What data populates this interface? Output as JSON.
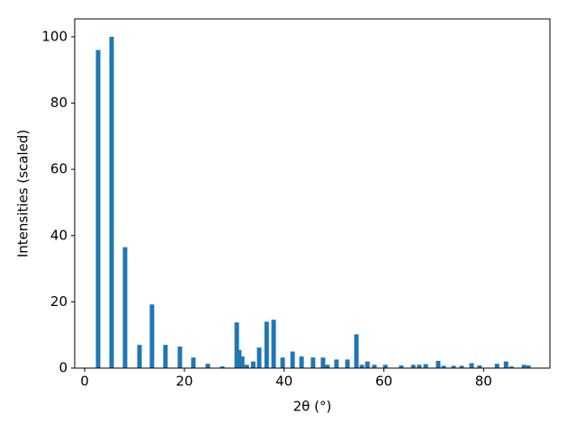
{
  "chart_data": {
    "type": "bar",
    "xlabel": "2θ (°)",
    "ylabel": "Intensities (scaled)",
    "x": [
      2.7,
      5.4,
      8.1,
      11.0,
      13.5,
      16.2,
      19.1,
      21.8,
      24.7,
      27.6,
      30.5,
      31.0,
      31.6,
      32.5,
      33.8,
      35.0,
      36.5,
      37.9,
      39.7,
      41.7,
      43.5,
      45.8,
      47.8,
      48.7,
      50.5,
      52.7,
      54.5,
      55.6,
      56.7,
      58.1,
      60.3,
      63.5,
      65.9,
      67.1,
      68.4,
      70.9,
      72.0,
      74.0,
      75.6,
      77.6,
      79.2,
      82.7,
      84.5,
      85.6,
      88.1,
      89.0
    ],
    "values": [
      96,
      100,
      36.5,
      7,
      19.2,
      7,
      6.5,
      3.2,
      1.3,
      0.5,
      13.8,
      5.5,
      3.5,
      1,
      2,
      6.2,
      14,
      14.6,
      3.2,
      5,
      3.5,
      3.2,
      3.2,
      1,
      2.6,
      2.6,
      10.2,
      1,
      2,
      1,
      1,
      0.8,
      1,
      1,
      1.2,
      2.2,
      0.7,
      0.7,
      0.7,
      1.5,
      0.8,
      1.3,
      2,
      0.5,
      1,
      0.8
    ],
    "color": "#1f77b4",
    "xlim": [
      -2,
      93.3
    ],
    "ylim": [
      0,
      105.4
    ],
    "xticks": [
      0,
      20,
      40,
      60,
      80
    ],
    "yticks": [
      0,
      20,
      40,
      60,
      80,
      100
    ]
  }
}
